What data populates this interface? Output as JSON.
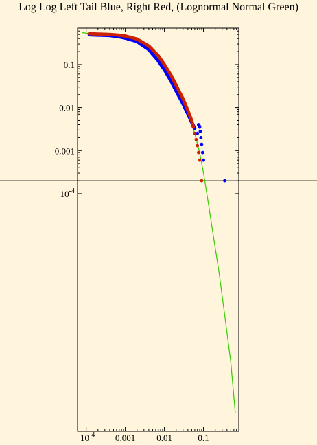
{
  "chart_data": {
    "type": "scatter",
    "title": "Log Log Left Tail Blue, Right Red, (Lognormal Normal Green)",
    "x_scale": "log",
    "y_scale": "log",
    "xlim": [
      6e-05,
      0.8
    ],
    "ylim": [
      3e-10,
      0.7
    ],
    "x_ticks": [
      {
        "value": 0.0001,
        "mantissa": "10",
        "exponent": "-4"
      },
      {
        "value": 0.001,
        "label": "0.001"
      },
      {
        "value": 0.01,
        "label": "0.01"
      },
      {
        "value": 0.1,
        "label": "0.1"
      }
    ],
    "y_ticks": [
      {
        "value": 0.1,
        "label": "0.1"
      },
      {
        "value": 0.01,
        "label": "0.01"
      },
      {
        "value": 0.001,
        "label": "0.001"
      },
      {
        "value": 0.0001,
        "mantissa": "10",
        "exponent": "-4"
      }
    ],
    "threshold_line_y": 0.0002,
    "series": [
      {
        "color": "#0000ff",
        "points": [
          [
            0.00012,
            0.49
          ],
          [
            0.0002,
            0.48
          ],
          [
            0.0004,
            0.47
          ],
          [
            0.0007,
            0.44
          ],
          [
            0.001,
            0.41
          ],
          [
            0.002,
            0.34
          ],
          [
            0.004,
            0.22
          ],
          [
            0.007,
            0.12
          ],
          [
            0.01,
            0.075
          ],
          [
            0.015,
            0.04
          ],
          [
            0.02,
            0.024
          ],
          [
            0.03,
            0.012
          ],
          [
            0.04,
            0.007
          ],
          [
            0.05,
            0.0045
          ],
          [
            0.06,
            0.0033
          ],
          [
            0.07,
            0.0025
          ],
          [
            0.075,
            0.004
          ],
          [
            0.08,
            0.0035
          ],
          [
            0.083,
            0.0028
          ],
          [
            0.086,
            0.002
          ],
          [
            0.09,
            0.0014
          ],
          [
            0.095,
            0.0009
          ],
          [
            0.1,
            0.0006
          ],
          [
            0.35,
            0.0002
          ]
        ]
      },
      {
        "color": "#cc2200",
        "points": [
          [
            0.00012,
            0.52
          ],
          [
            0.0002,
            0.51
          ],
          [
            0.0004,
            0.5
          ],
          [
            0.0007,
            0.48
          ],
          [
            0.001,
            0.46
          ],
          [
            0.002,
            0.39
          ],
          [
            0.004,
            0.27
          ],
          [
            0.007,
            0.16
          ],
          [
            0.01,
            0.1
          ],
          [
            0.015,
            0.055
          ],
          [
            0.02,
            0.033
          ],
          [
            0.03,
            0.016
          ],
          [
            0.04,
            0.0085
          ],
          [
            0.05,
            0.005
          ],
          [
            0.055,
            0.0035
          ],
          [
            0.06,
            0.0025
          ],
          [
            0.065,
            0.0018
          ],
          [
            0.07,
            0.0013
          ],
          [
            0.075,
            0.0009
          ],
          [
            0.08,
            0.0006
          ],
          [
            0.09,
            0.0002
          ]
        ]
      },
      {
        "color": "#33cc00",
        "type": "line",
        "points": [
          [
            8e-05,
            0.55
          ],
          [
            0.0002,
            0.5
          ],
          [
            0.0005,
            0.46
          ],
          [
            0.001,
            0.42
          ],
          [
            0.002,
            0.35
          ],
          [
            0.004,
            0.24
          ],
          [
            0.007,
            0.14
          ],
          [
            0.01,
            0.09
          ],
          [
            0.02,
            0.03
          ],
          [
            0.04,
            0.0075
          ],
          [
            0.06,
            0.0025
          ],
          [
            0.08,
            0.0009
          ],
          [
            0.1,
            0.0003
          ],
          [
            0.13,
            7e-05
          ],
          [
            0.18,
            1e-05
          ],
          [
            0.25,
            1.5e-06
          ],
          [
            0.35,
            1.5e-07
          ],
          [
            0.5,
            1.2e-08
          ],
          [
            0.65,
            8e-10
          ]
        ]
      }
    ]
  }
}
